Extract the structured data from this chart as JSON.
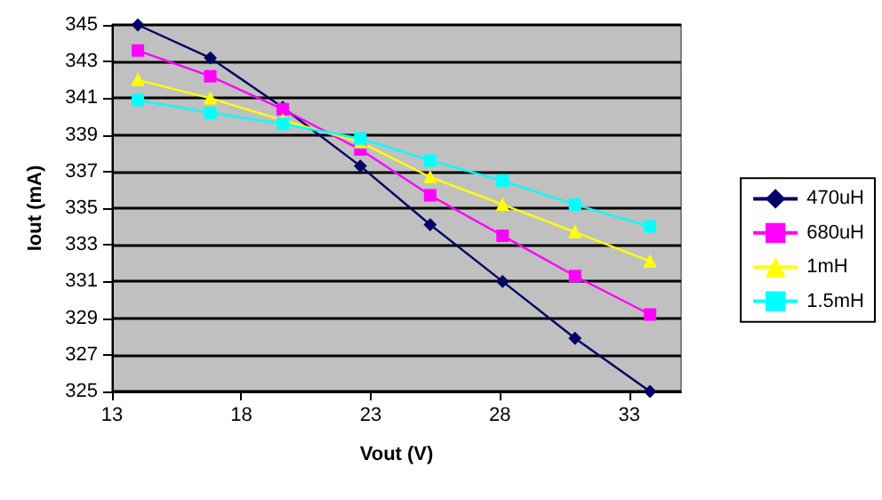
{
  "chart_data": {
    "type": "line",
    "xlabel": "Vout (V)",
    "ylabel": "Iout (mA)",
    "x": [
      14,
      16.8,
      19.6,
      22.6,
      25.3,
      28.1,
      30.9,
      33.8
    ],
    "xlim": [
      13,
      35
    ],
    "xticks": [
      13,
      18,
      23,
      28,
      33
    ],
    "ylim": [
      325,
      345
    ],
    "yticks": [
      325,
      327,
      329,
      331,
      333,
      335,
      337,
      339,
      341,
      343,
      345
    ],
    "grid": "y",
    "legend": "right",
    "series": [
      {
        "name": "470uH",
        "color": "#000066",
        "marker": "diamond",
        "values": [
          345,
          343.2,
          340.5,
          337.3,
          334.1,
          331,
          327.9,
          325
        ]
      },
      {
        "name": "680uH",
        "color": "#ff00ff",
        "marker": "square",
        "values": [
          343.6,
          342.2,
          340.4,
          338.2,
          335.7,
          333.5,
          331.3,
          329.2
        ]
      },
      {
        "name": "1mH",
        "color": "#ffff00",
        "marker": "triangle",
        "values": [
          342,
          341,
          339.8,
          338.6,
          336.7,
          335.2,
          333.7,
          332.1
        ]
      },
      {
        "name": "1.5mH",
        "color": "#00ffff",
        "marker": "square",
        "values": [
          340.9,
          340.2,
          339.6,
          338.8,
          337.6,
          336.5,
          335.2,
          334
        ]
      }
    ]
  }
}
